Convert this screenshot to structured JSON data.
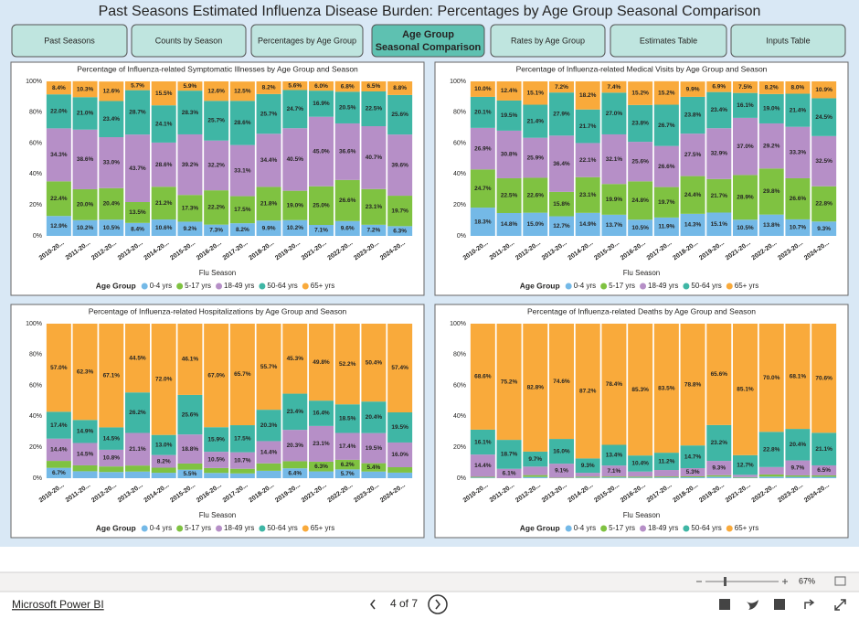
{
  "header": {
    "title": "Past Seasons Estimated Influenza Disease Burden: Percentages by Age Group Seasonal Comparison"
  },
  "tabs": [
    "Past Seasons",
    "Counts by Season",
    "Percentages by Age Group",
    "Age Group Seasonal Comparison",
    "Rates by Age Group",
    "Estimates Table",
    "Inputs Table"
  ],
  "active_tab": 3,
  "chart_data": [
    {
      "type": "bar",
      "stacked": true,
      "title": "Percentage of Influenza-related Symptomatic Illnesses by Age Group and Season",
      "x_label": "Flu Season",
      "legend_title": "Age Group",
      "categories": [
        "2010-20...",
        "2011-20...",
        "2012-20...",
        "2013-20...",
        "2014-20...",
        "2015-20...",
        "2016-20...",
        "2017-20...",
        "2018-20...",
        "2019-20...",
        "2021-20...",
        "2022-20...",
        "2023-20...",
        "2024-20..."
      ],
      "ylim": [
        0,
        100
      ],
      "yticks": [
        {
          "value": 0,
          "label": "0%"
        },
        {
          "value": 20,
          "label": "20%"
        },
        {
          "value": 40,
          "label": "40%"
        },
        {
          "value": 60,
          "label": "60%"
        },
        {
          "value": 80,
          "label": "80%"
        },
        {
          "value": 100,
          "label": "100%"
        }
      ],
      "series": [
        {
          "name": "0-4 yrs",
          "color": "#74b9e7",
          "values": [
            12.9,
            10.2,
            10.5,
            8.4,
            10.6,
            9.2,
            7.3,
            8.2,
            9.9,
            10.2,
            7.1,
            9.6,
            7.2,
            6.3
          ],
          "value_labels": [
            "12.9%",
            "10.2%",
            "10.5%",
            "8.4%",
            "10.6%",
            "9.2%",
            "7.3%",
            "8.2%",
            "9.9%",
            "10.2%",
            "7.1%",
            "9.6%",
            "7.2%",
            "6.3%"
          ]
        },
        {
          "name": "5-17 yrs",
          "color": "#7fc241",
          "values": [
            22.4,
            20.0,
            20.4,
            13.5,
            21.2,
            17.3,
            22.2,
            17.5,
            21.8,
            19.0,
            25.0,
            26.6,
            23.1,
            19.7
          ],
          "value_labels": [
            "22.4%",
            "20.0%",
            "20.4%",
            "13.5%",
            "21.2%",
            "17.3%",
            "22.2%",
            "17.5%",
            "21.8%",
            "19.0%",
            "25.0%",
            "26.6%",
            "23.1%",
            "19.7%"
          ]
        },
        {
          "name": "18-49 yrs",
          "color": "#b68fc7",
          "values": [
            34.3,
            38.6,
            33.0,
            43.7,
            28.6,
            39.2,
            32.2,
            33.1,
            34.4,
            40.5,
            45.0,
            36.6,
            40.7,
            39.6
          ],
          "value_labels": [
            "34.3%",
            "38.6%",
            "33.0%",
            "43.7%",
            "28.6%",
            "39.2%",
            "32.2%",
            "33.1%",
            "34.4%",
            "40.5%",
            "45.0%",
            "36.6%",
            "40.7%",
            "39.6%"
          ]
        },
        {
          "name": "50-64 yrs",
          "color": "#3fb6a5",
          "values": [
            22.0,
            21.0,
            23.4,
            28.7,
            24.1,
            28.3,
            25.7,
            28.6,
            25.7,
            24.7,
            16.9,
            20.5,
            22.5,
            25.6
          ],
          "value_labels": [
            "22.0%",
            "21.0%",
            "23.4%",
            "28.7%",
            "24.1%",
            "28.3%",
            "25.7%",
            "28.6%",
            "25.7%",
            "24.7%",
            "16.9%",
            "20.5%",
            "22.5%",
            "25.6%"
          ]
        },
        {
          "name": "65+ yrs",
          "color": "#f9aa3b",
          "values": [
            8.4,
            10.3,
            12.6,
            5.7,
            15.5,
            5.9,
            12.6,
            12.5,
            8.2,
            5.6,
            6.0,
            6.8,
            6.5,
            8.8
          ],
          "value_labels": [
            "8.4%",
            "10.3%",
            "12.6%",
            "5.7%",
            "15.5%",
            "5.9%",
            "12.6%",
            "12.5%",
            "8.2%",
            "5.6%",
            "6.0%",
            "6.8%",
            "6.5%",
            "8.8%"
          ]
        }
      ]
    },
    {
      "type": "bar",
      "stacked": true,
      "title": "Percentage of Influenza-related Medical Visits by Age Group and Season",
      "x_label": "Flu Season",
      "legend_title": "Age Group",
      "categories": [
        "2010-20...",
        "2011-20...",
        "2012-20...",
        "2013-20...",
        "2014-20...",
        "2015-20...",
        "2016-20...",
        "2017-20...",
        "2018-20...",
        "2019-20...",
        "2021-20...",
        "2022-20...",
        "2023-20...",
        "2024-20..."
      ],
      "ylim": [
        0,
        100
      ],
      "yticks": [
        {
          "value": 0,
          "label": "0%"
        },
        {
          "value": 20,
          "label": "20%"
        },
        {
          "value": 40,
          "label": "40%"
        },
        {
          "value": 60,
          "label": "60%"
        },
        {
          "value": 80,
          "label": "80%"
        },
        {
          "value": 100,
          "label": "100%"
        }
      ],
      "series": [
        {
          "name": "0-4 yrs",
          "color": "#74b9e7",
          "values": [
            18.3,
            14.8,
            15.0,
            12.7,
            14.9,
            13.7,
            10.5,
            11.9,
            14.3,
            15.1,
            10.5,
            13.8,
            10.7,
            9.3
          ],
          "value_labels": [
            "18.3%",
            "14.8%",
            "15.0%",
            "12.7%",
            "14.9%",
            "13.7%",
            "10.5%",
            "11.9%",
            "14.3%",
            "15.1%",
            "10.5%",
            "13.8%",
            "10.7%",
            "9.3%"
          ]
        },
        {
          "name": "5-17 yrs",
          "color": "#7fc241",
          "values": [
            24.7,
            22.5,
            22.6,
            15.8,
            23.1,
            19.9,
            24.8,
            19.7,
            24.4,
            21.7,
            28.9,
            29.8,
            26.6,
            22.8
          ],
          "value_labels": [
            "24.7%",
            "22.5%",
            "22.6%",
            "15.8%",
            "23.1%",
            "19.9%",
            "24.8%",
            "19.7%",
            "24.4%",
            "21.7%",
            "28.9%",
            "29.8%",
            "26.6%",
            "22.8%"
          ]
        },
        {
          "name": "18-49 yrs",
          "color": "#b68fc7",
          "values": [
            26.9,
            30.8,
            25.9,
            36.4,
            22.1,
            32.1,
            25.6,
            26.6,
            27.5,
            32.9,
            37.0,
            29.2,
            33.3,
            32.5
          ],
          "value_labels": [
            "26.9%",
            "30.8%",
            "25.9%",
            "36.4%",
            "22.1%",
            "32.1%",
            "25.6%",
            "26.6%",
            "27.5%",
            "32.9%",
            "37.0%",
            "29.2%",
            "33.3%",
            "32.5%"
          ]
        },
        {
          "name": "50-64 yrs",
          "color": "#3fb6a5",
          "values": [
            20.1,
            19.5,
            21.4,
            27.9,
            21.7,
            27.0,
            23.8,
            26.7,
            23.8,
            23.4,
            16.1,
            19.0,
            21.4,
            24.5
          ],
          "value_labels": [
            "20.1%",
            "19.5%",
            "21.4%",
            "27.9%",
            "21.7%",
            "27.0%",
            "23.8%",
            "26.7%",
            "23.8%",
            "23.4%",
            "16.1%",
            "19.0%",
            "21.4%",
            "24.5%"
          ]
        },
        {
          "name": "65+ yrs",
          "color": "#f9aa3b",
          "values": [
            10.0,
            12.4,
            15.1,
            7.2,
            18.2,
            7.4,
            15.2,
            15.2,
            9.9,
            6.9,
            7.5,
            8.2,
            8.0,
            10.9
          ],
          "value_labels": [
            "10.0%",
            "12.4%",
            "15.1%",
            "7.2%",
            "18.2%",
            "7.4%",
            "15.2%",
            "15.2%",
            "9.9%",
            "6.9%",
            "7.5%",
            "8.2%",
            "8.0%",
            "10.9%"
          ]
        }
      ]
    },
    {
      "type": "bar",
      "stacked": true,
      "title": "Percentage of Influenza-related Hospitalizations by Age Group and Season",
      "x_label": "Flu Season",
      "legend_title": "Age Group",
      "categories": [
        "2010-20...",
        "2011-20...",
        "2012-20...",
        "2013-20...",
        "2014-20...",
        "2015-20...",
        "2016-20...",
        "2017-20...",
        "2018-20...",
        "2019-20...",
        "2021-20...",
        "2022-20...",
        "2023-20...",
        "2024-20..."
      ],
      "ylim": [
        0,
        100
      ],
      "yticks": [
        {
          "value": 0,
          "label": "0%"
        },
        {
          "value": 20,
          "label": "20%"
        },
        {
          "value": 40,
          "label": "40%"
        },
        {
          "value": 60,
          "label": "60%"
        },
        {
          "value": 80,
          "label": "80%"
        },
        {
          "value": 100,
          "label": "100%"
        }
      ],
      "series": [
        {
          "name": "0-4 yrs",
          "color": "#74b9e7",
          "values": [
            6.7,
            4.5,
            4.0,
            4.3,
            3.5,
            5.5,
            3.4,
            3.1,
            4.8,
            6.4,
            4.4,
            5.7,
            4.3,
            3.6
          ],
          "value_labels": [
            "6.7%",
            null,
            null,
            null,
            null,
            "5.5%",
            null,
            null,
            null,
            "6.4%",
            null,
            "5.7%",
            null,
            null
          ]
        },
        {
          "name": "5-17 yrs",
          "color": "#7fc241",
          "values": [
            4.5,
            3.8,
            3.6,
            3.9,
            3.3,
            4.0,
            3.2,
            3.0,
            4.8,
            4.6,
            6.3,
            6.2,
            5.4,
            3.5
          ],
          "value_labels": [
            null,
            null,
            null,
            null,
            null,
            null,
            null,
            null,
            null,
            null,
            "6.3%",
            "6.2%",
            "5.4%",
            null
          ]
        },
        {
          "name": "18-49 yrs",
          "color": "#b68fc7",
          "values": [
            14.4,
            14.5,
            10.8,
            21.1,
            8.2,
            18.8,
            10.5,
            10.7,
            14.4,
            20.3,
            23.1,
            17.4,
            19.5,
            16.0
          ],
          "value_labels": [
            "14.4%",
            "14.5%",
            "10.8%",
            "21.1%",
            "8.2%",
            "18.8%",
            "10.5%",
            "10.7%",
            "14.4%",
            "20.3%",
            "23.1%",
            "17.4%",
            "19.5%",
            "16.0%"
          ]
        },
        {
          "name": "50-64 yrs",
          "color": "#3fb6a5",
          "values": [
            17.4,
            14.9,
            14.5,
            26.2,
            13.0,
            25.6,
            15.9,
            17.5,
            20.3,
            23.4,
            16.4,
            18.5,
            20.4,
            19.5
          ],
          "value_labels": [
            "17.4%",
            "14.9%",
            "14.5%",
            "26.2%",
            "13.0%",
            "25.6%",
            "15.9%",
            "17.5%",
            "20.3%",
            "23.4%",
            "16.4%",
            "18.5%",
            "20.4%",
            "19.5%"
          ]
        },
        {
          "name": "65+ yrs",
          "color": "#f9aa3b",
          "values": [
            57.0,
            62.3,
            67.1,
            44.5,
            72.0,
            46.1,
            67.0,
            65.7,
            55.7,
            45.3,
            49.8,
            52.2,
            50.4,
            57.4
          ],
          "value_labels": [
            "57.0%",
            "62.3%",
            "67.1%",
            "44.5%",
            "72.0%",
            "46.1%",
            "67.0%",
            "65.7%",
            "55.7%",
            "45.3%",
            "49.8%",
            "52.2%",
            "50.4%",
            "57.4%"
          ]
        }
      ]
    },
    {
      "type": "bar",
      "stacked": true,
      "title": "Percentage of Influenza-related Deaths by Age Group and Season",
      "x_label": "Flu Season",
      "legend_title": "Age Group",
      "categories": [
        "2010-20...",
        "2011-20...",
        "2012-20...",
        "2013-20...",
        "2014-20...",
        "2015-20...",
        "2016-20...",
        "2017-20...",
        "2018-20...",
        "2019-20...",
        "2021-20...",
        "2022-20...",
        "2023-20...",
        "2024-20..."
      ],
      "ylim": [
        0,
        100
      ],
      "yticks": [
        {
          "value": 0,
          "label": "0%"
        },
        {
          "value": 20,
          "label": "20%"
        },
        {
          "value": 40,
          "label": "40%"
        },
        {
          "value": 60,
          "label": "60%"
        },
        {
          "value": 80,
          "label": "80%"
        },
        {
          "value": 100,
          "label": "100%"
        }
      ],
      "series": [
        {
          "name": "0-4 yrs",
          "color": "#74b9e7",
          "values": [
            0.4,
            0,
            0.8,
            0.1,
            0.4,
            0.5,
            0.4,
            0.5,
            0.6,
            1.0,
            0.3,
            1.0,
            0.9,
            0.9
          ],
          "value_labels": [
            null,
            null,
            null,
            null,
            null,
            null,
            null,
            null,
            null,
            null,
            null,
            null,
            null,
            null
          ]
        },
        {
          "name": "5-17 yrs",
          "color": "#7fc241",
          "values": [
            0.5,
            0,
            1.2,
            0.2,
            0.6,
            0.6,
            0.6,
            0.6,
            0.6,
            0.9,
            0.4,
            1.4,
            0.9,
            0.9
          ],
          "value_labels": [
            null,
            null,
            null,
            null,
            null,
            null,
            null,
            null,
            null,
            null,
            null,
            null,
            null,
            null
          ]
        },
        {
          "name": "18-49 yrs",
          "color": "#b68fc7",
          "values": [
            14.4,
            6.1,
            5.5,
            9.1,
            2.5,
            7.1,
            3.3,
            4.2,
            5.3,
            9.3,
            1.5,
            4.8,
            9.7,
            6.5
          ],
          "value_labels": [
            "14.4%",
            "6.1%",
            null,
            "9.1%",
            null,
            "7.1%",
            null,
            null,
            "5.3%",
            "9.3%",
            null,
            null,
            "9.7%",
            "6.5%"
          ]
        },
        {
          "name": "50-64 yrs",
          "color": "#3fb6a5",
          "values": [
            16.1,
            18.7,
            9.7,
            16.0,
            9.3,
            13.4,
            10.4,
            11.2,
            14.7,
            23.2,
            12.7,
            22.8,
            20.4,
            21.1
          ],
          "value_labels": [
            "16.1%",
            "18.7%",
            "9.7%",
            "16.0%",
            "9.3%",
            "13.4%",
            "10.4%",
            "11.2%",
            "14.7%",
            "23.2%",
            "12.7%",
            "22.8%",
            "20.4%",
            "21.1%"
          ]
        },
        {
          "name": "65+ yrs",
          "color": "#f9aa3b",
          "values": [
            68.6,
            75.2,
            82.8,
            74.6,
            87.2,
            78.4,
            85.3,
            83.5,
            78.8,
            65.6,
            85.1,
            70.0,
            68.1,
            70.6
          ],
          "value_labels": [
            "68.6%",
            "75.2%",
            "82.8%",
            "74.6%",
            "87.2%",
            "78.4%",
            "85.3%",
            "83.5%",
            "78.8%",
            "65.6%",
            "85.1%",
            "70.0%",
            "68.1%",
            "70.6%"
          ]
        }
      ]
    }
  ],
  "footer": {
    "zoom": "67%",
    "brand": "Microsoft Power BI",
    "page": "4 of 7"
  }
}
